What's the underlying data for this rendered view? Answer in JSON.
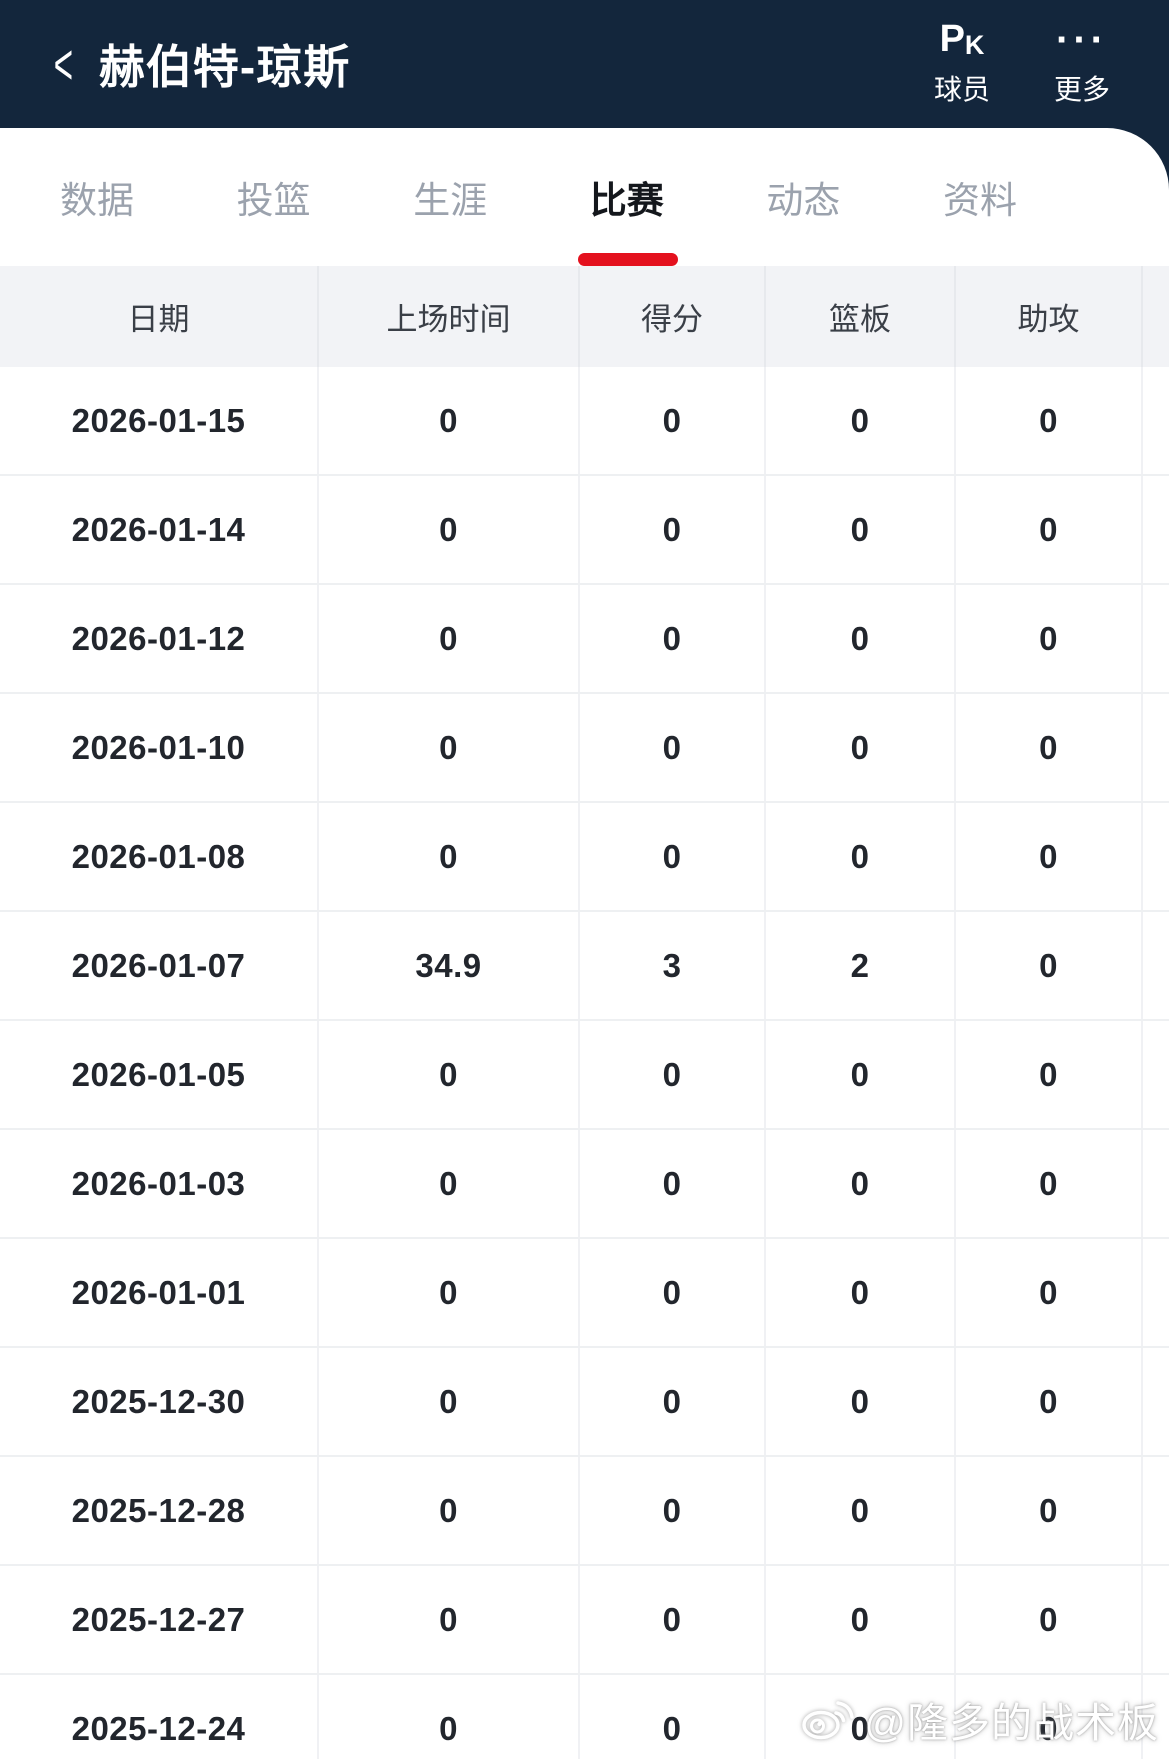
{
  "header": {
    "back_icon": "<",
    "title": "赫伯特-琼斯",
    "pk_button": {
      "icon_p": "P",
      "icon_k": "K",
      "label": "球员"
    },
    "more_button": {
      "icon_dots": "···",
      "label": "更多"
    }
  },
  "tabs": [
    {
      "label": "数据",
      "active": false
    },
    {
      "label": "投篮",
      "active": false
    },
    {
      "label": "生涯",
      "active": false
    },
    {
      "label": "比赛",
      "active": true
    },
    {
      "label": "动态",
      "active": false
    },
    {
      "label": "资料",
      "active": false
    }
  ],
  "table": {
    "columns": [
      "日期",
      "上场时间",
      "得分",
      "篮板",
      "助攻"
    ],
    "rows": [
      [
        "2026-01-15",
        "0",
        "0",
        "0",
        "0"
      ],
      [
        "2026-01-14",
        "0",
        "0",
        "0",
        "0"
      ],
      [
        "2026-01-12",
        "0",
        "0",
        "0",
        "0"
      ],
      [
        "2026-01-10",
        "0",
        "0",
        "0",
        "0"
      ],
      [
        "2026-01-08",
        "0",
        "0",
        "0",
        "0"
      ],
      [
        "2026-01-07",
        "34.9",
        "3",
        "2",
        "0"
      ],
      [
        "2026-01-05",
        "0",
        "0",
        "0",
        "0"
      ],
      [
        "2026-01-03",
        "0",
        "0",
        "0",
        "0"
      ],
      [
        "2026-01-01",
        "0",
        "0",
        "0",
        "0"
      ],
      [
        "2025-12-30",
        "0",
        "0",
        "0",
        "0"
      ],
      [
        "2025-12-28",
        "0",
        "0",
        "0",
        "0"
      ],
      [
        "2025-12-27",
        "0",
        "0",
        "0",
        "0"
      ],
      [
        "2025-12-24",
        "0",
        "0",
        "0",
        "0"
      ]
    ]
  },
  "watermark": {
    "text": "@隆多的战术板",
    "icon": "weibo-icon"
  },
  "colors": {
    "navy_header": "#13263c",
    "accent_red": "#e4111e",
    "tab_inactive": "#9ba2ad",
    "table_header_bg": "#f2f3f6"
  }
}
